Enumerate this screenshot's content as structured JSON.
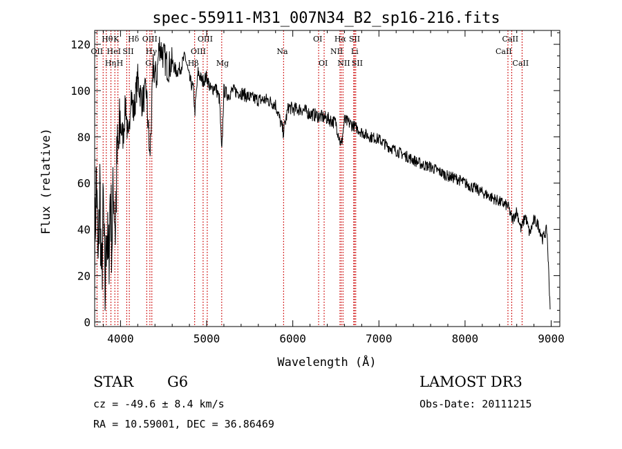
{
  "chart_data": {
    "type": "line",
    "title": "spec-55911-M31_007N34_B2_sp16-216.fits",
    "xlabel": "Wavelength (Å)",
    "ylabel": "Flux (relative)",
    "xlim": [
      3700,
      9100
    ],
    "ylim": [
      -2,
      126
    ],
    "xticks": [
      4000,
      5000,
      6000,
      7000,
      8000,
      9000
    ],
    "yticks": [
      0,
      20,
      40,
      60,
      80,
      100,
      120
    ],
    "series": [
      {
        "name": "spectrum",
        "x": [
          3700,
          3720,
          3740,
          3760,
          3780,
          3800,
          3820,
          3840,
          3860,
          3880,
          3900,
          3920,
          3940,
          3960,
          3980,
          4000,
          4030,
          4060,
          4090,
          4120,
          4150,
          4200,
          4250,
          4300,
          4340,
          4380,
          4420,
          4450,
          4500,
          4550,
          4600,
          4650,
          4700,
          4750,
          4800,
          4850,
          4861,
          4900,
          4950,
          5000,
          5050,
          5100,
          5150,
          5175,
          5200,
          5250,
          5300,
          5400,
          5500,
          5600,
          5700,
          5800,
          5890,
          5950,
          6000,
          6100,
          6200,
          6300,
          6400,
          6500,
          6563,
          6600,
          6700,
          6800,
          6900,
          7000,
          7100,
          7200,
          7300,
          7400,
          7500,
          7600,
          7700,
          7800,
          7900,
          8000,
          8100,
          8200,
          8300,
          8400,
          8500,
          8550,
          8600,
          8650,
          8700,
          8750,
          8800,
          8850,
          8900,
          8950,
          8990
        ],
        "y": [
          30,
          65,
          20,
          60,
          15,
          50,
          10,
          45,
          20,
          55,
          35,
          60,
          40,
          70,
          75,
          85,
          80,
          95,
          75,
          100,
          90,
          105,
          95,
          100,
          70,
          110,
          105,
          120,
          115,
          110,
          112,
          108,
          110,
          115,
          105,
          100,
          90,
          108,
          104,
          106,
          100,
          102,
          96,
          72,
          100,
          98,
          100,
          99,
          97,
          96,
          96,
          94,
          82,
          93,
          92,
          92,
          90,
          89,
          88,
          86,
          76,
          87,
          85,
          82,
          80,
          79,
          76,
          74,
          72,
          70,
          68,
          67,
          65,
          63,
          62,
          60,
          58,
          56,
          54,
          52,
          50,
          44,
          48,
          40,
          46,
          38,
          44,
          42,
          36,
          40,
          5
        ]
      }
    ],
    "lines": [
      {
        "wl": 3727,
        "labels": [
          "OII"
        ],
        "row": [
          1
        ],
        "dx": [
          -9
        ]
      },
      {
        "wl": 3798,
        "labels": [
          "Hθ"
        ],
        "row": [
          0
        ],
        "dx": [
          -2
        ]
      },
      {
        "wl": 3835,
        "labels": [
          "Hη"
        ],
        "row": [
          2
        ],
        "dx": [
          -2
        ]
      },
      {
        "wl": 3889,
        "labels": [
          "HeI"
        ],
        "row": [
          1
        ],
        "dx": [
          -6
        ]
      },
      {
        "wl": 3934,
        "labels": [
          "K"
        ],
        "row": [
          0
        ],
        "dx": [
          -2
        ]
      },
      {
        "wl": 3970,
        "labels": [
          "H"
        ],
        "row": [
          2
        ],
        "dx": [
          -2
        ]
      },
      {
        "wl": 4072,
        "labels": [
          "SII"
        ],
        "row": [
          1
        ],
        "dx": [
          -6
        ]
      },
      {
        "wl": 4102,
        "labels": [
          "Hδ"
        ],
        "row": [
          0
        ],
        "dx": [
          -2
        ]
      },
      {
        "wl": 4304,
        "labels": [
          "G"
        ],
        "row": [
          2
        ],
        "dx": [
          -2
        ]
      },
      {
        "wl": 4341,
        "labels": [
          "Hγ"
        ],
        "row": [
          1
        ],
        "dx": [
          -6
        ]
      },
      {
        "wl": 4364,
        "labels": [
          "OIII"
        ],
        "row": [
          0
        ],
        "dx": [
          -14
        ]
      },
      {
        "wl": 4861,
        "labels": [
          "Hβ"
        ],
        "row": [
          2
        ],
        "dx": [
          -10
        ]
      },
      {
        "wl": 4959,
        "labels": [
          "OIII"
        ],
        "row": [
          1
        ],
        "dx": [
          -18
        ]
      },
      {
        "wl": 5007,
        "labels": [
          "OIII"
        ],
        "row": [
          0
        ],
        "dx": [
          -14
        ]
      },
      {
        "wl": 5175,
        "labels": [
          "Mg"
        ],
        "row": [
          2
        ],
        "dx": [
          -8
        ]
      },
      {
        "wl": 5893,
        "labels": [
          "Na"
        ],
        "row": [
          1
        ],
        "dx": [
          -10
        ]
      },
      {
        "wl": 6300,
        "labels": [
          "OI"
        ],
        "row": [
          0
        ],
        "dx": [
          -8
        ]
      },
      {
        "wl": 6364,
        "labels": [
          "OI"
        ],
        "row": [
          2
        ],
        "dx": [
          -8
        ]
      },
      {
        "wl": 6548,
        "labels": [
          "NII"
        ],
        "row": [
          1
        ],
        "dx": [
          -14
        ]
      },
      {
        "wl": 6563,
        "labels": [
          "Hα"
        ],
        "row": [
          0
        ],
        "dx": [
          -10
        ]
      },
      {
        "wl": 6583,
        "labels": [
          "NII"
        ],
        "row": [
          2
        ],
        "dx": [
          -8
        ]
      },
      {
        "wl": 6708,
        "labels": [
          "Li"
        ],
        "row": [
          1
        ],
        "dx": [
          -4
        ]
      },
      {
        "wl": 6716,
        "labels": [
          "SII"
        ],
        "row": [
          0
        ],
        "dx": [
          -8
        ]
      },
      {
        "wl": 6731,
        "labels": [
          "SII"
        ],
        "row": [
          2
        ],
        "dx": [
          -6
        ]
      },
      {
        "wl": 8498,
        "labels": [
          "CaII"
        ],
        "row": [
          1
        ],
        "dx": [
          -18
        ]
      },
      {
        "wl": 8542,
        "labels": [
          "CaII"
        ],
        "row": [
          0
        ],
        "dx": [
          -14
        ]
      },
      {
        "wl": 8662,
        "labels": [
          "CaII"
        ],
        "row": [
          2
        ],
        "dx": [
          -14
        ]
      }
    ]
  },
  "info": {
    "object_class": "STAR",
    "subclass": "G6",
    "survey": "LAMOST DR3",
    "redshift_line": "cz = -49.6 ± 8.4 km/s",
    "obs_date_line": "Obs-Date: 20111215",
    "coords_line": "RA =  10.59001, DEC =  36.86469"
  },
  "colors": {
    "axis": "#000000",
    "spectrum": "#000000",
    "line_marker": "#cc0000",
    "background": "#ffffff"
  }
}
